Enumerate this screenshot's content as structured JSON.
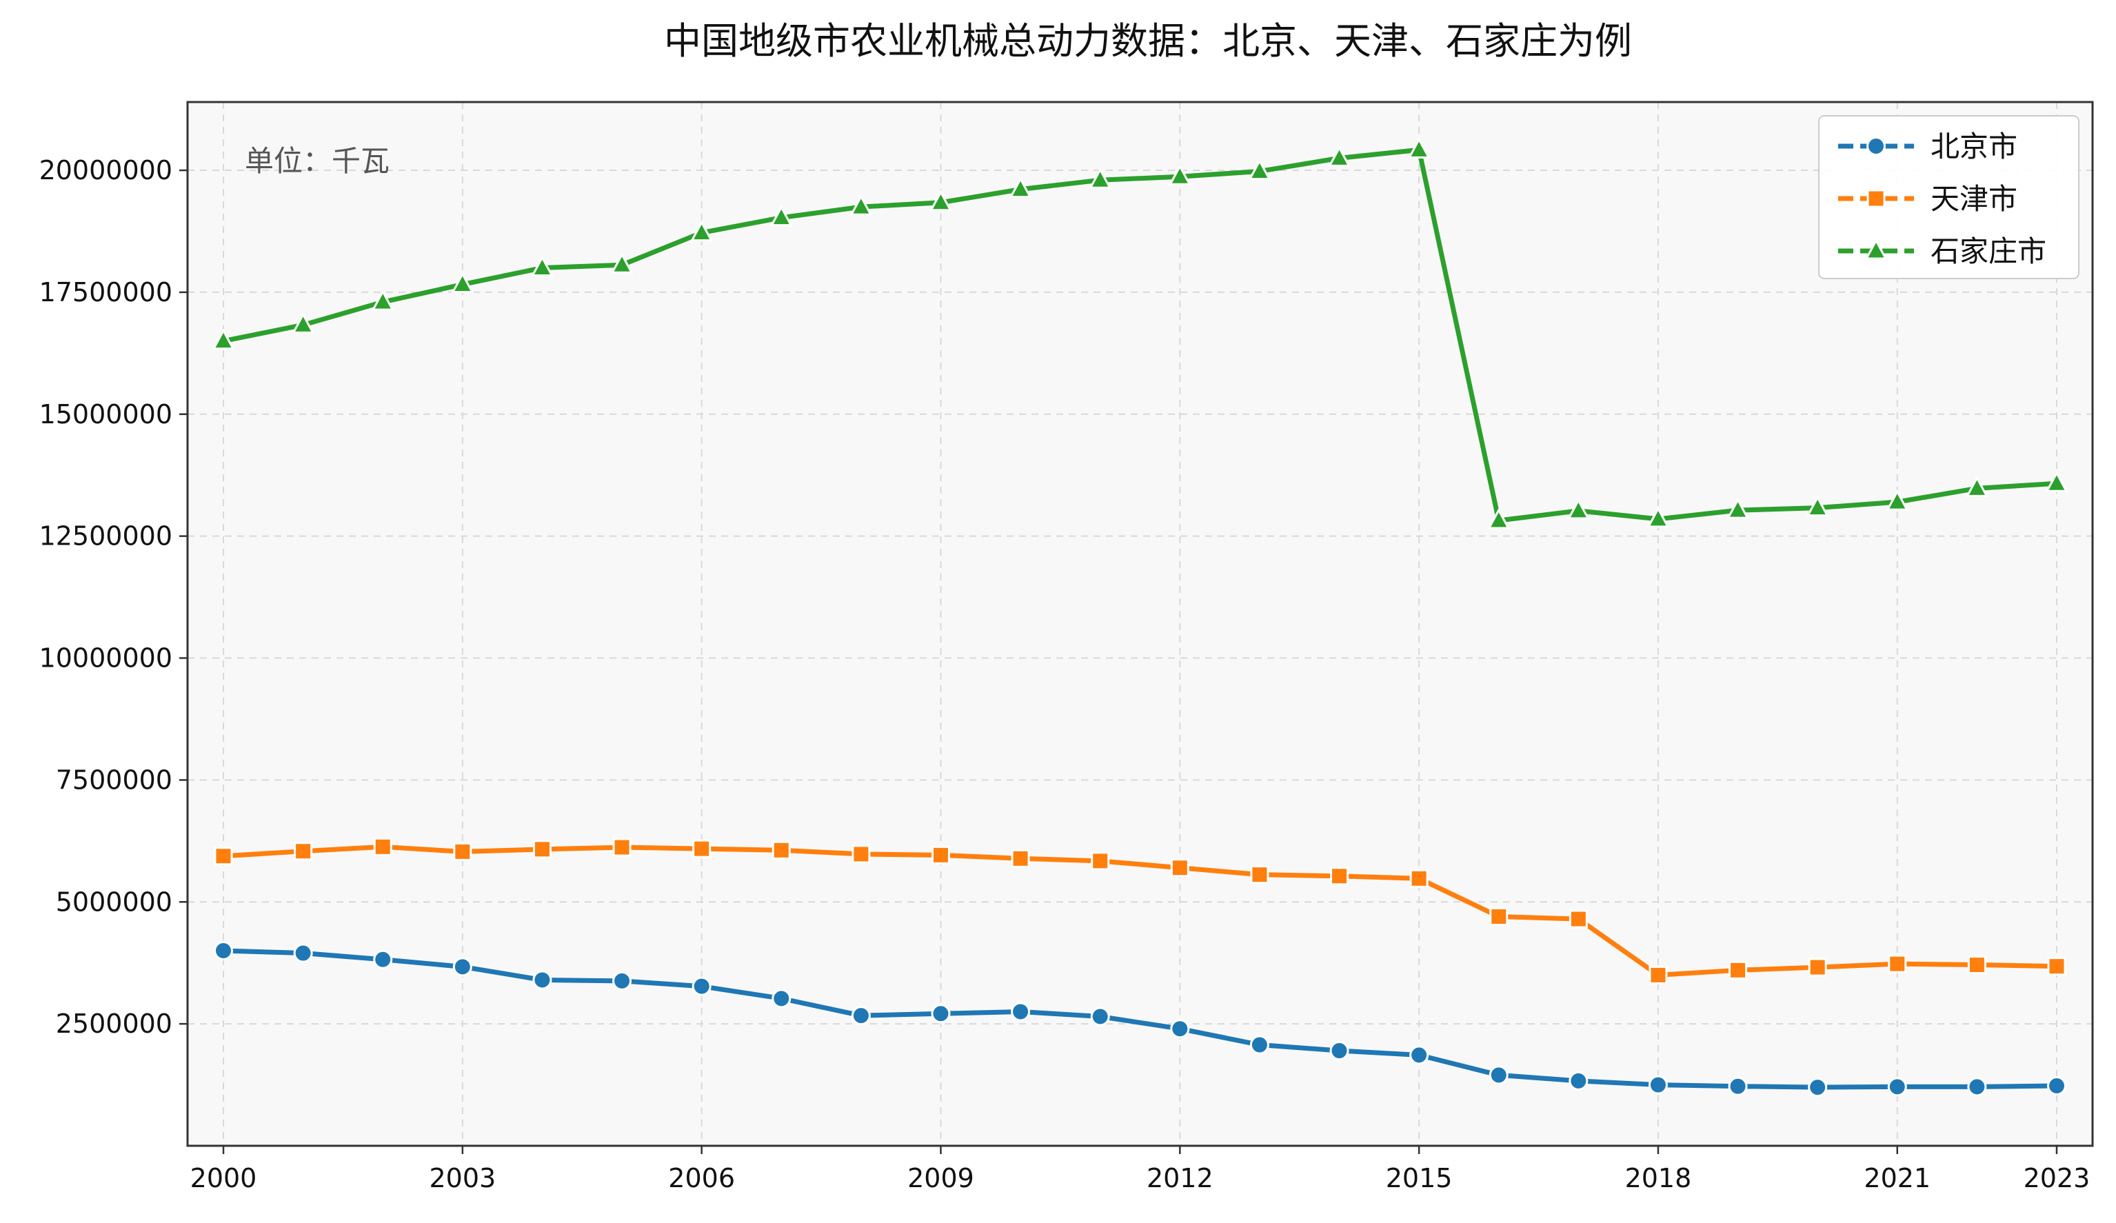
{
  "chart_data": {
    "type": "line",
    "title": "中国地级市农业机械总动力数据：北京、天津、石家庄为例",
    "unit_note": "单位：千瓦",
    "xlabel": "",
    "ylabel": "",
    "x": [
      2000,
      2001,
      2002,
      2003,
      2004,
      2005,
      2006,
      2007,
      2008,
      2009,
      2010,
      2011,
      2012,
      2013,
      2014,
      2015,
      2016,
      2017,
      2018,
      2019,
      2020,
      2021,
      2022,
      2023
    ],
    "x_ticks": [
      "2000",
      "2003",
      "2006",
      "2009",
      "2012",
      "2015",
      "2018",
      "2021",
      "2023"
    ],
    "x_tick_values": [
      2000,
      2003,
      2006,
      2009,
      2012,
      2015,
      2018,
      2021,
      2023
    ],
    "y_ticks": [
      "2500000",
      "5000000",
      "7500000",
      "10000000",
      "12500000",
      "15000000",
      "17500000",
      "20000000"
    ],
    "y_tick_values": [
      2500000,
      5000000,
      7500000,
      10000000,
      12500000,
      15000000,
      17500000,
      20000000
    ],
    "xlim": [
      1999.55,
      2023.45
    ],
    "ylim": [
      0,
      21400000
    ],
    "grid": true,
    "legend_position": "top-right",
    "series": [
      {
        "name": "北京市",
        "color": "#1f77b4",
        "marker": "circle",
        "values": [
          4000000,
          3950000,
          3820000,
          3670000,
          3400000,
          3380000,
          3270000,
          3020000,
          2670000,
          2710000,
          2750000,
          2650000,
          2400000,
          2070000,
          1950000,
          1860000,
          1450000,
          1330000,
          1250000,
          1220000,
          1200000,
          1210000,
          1210000,
          1230000
        ]
      },
      {
        "name": "天津市",
        "color": "#ff7f0e",
        "marker": "square",
        "values": [
          5940000,
          6040000,
          6130000,
          6030000,
          6080000,
          6120000,
          6090000,
          6060000,
          5980000,
          5960000,
          5890000,
          5840000,
          5700000,
          5560000,
          5530000,
          5480000,
          4700000,
          4650000,
          3500000,
          3600000,
          3660000,
          3730000,
          3710000,
          3680000
        ]
      },
      {
        "name": "石家庄市",
        "color": "#2ca02c",
        "marker": "triangle",
        "values": [
          16500000,
          16830000,
          17300000,
          17660000,
          18000000,
          18060000,
          18720000,
          19030000,
          19250000,
          19340000,
          19610000,
          19800000,
          19870000,
          19980000,
          20250000,
          20420000,
          12820000,
          13020000,
          12850000,
          13030000,
          13080000,
          13200000,
          13480000,
          13580000
        ]
      }
    ]
  }
}
